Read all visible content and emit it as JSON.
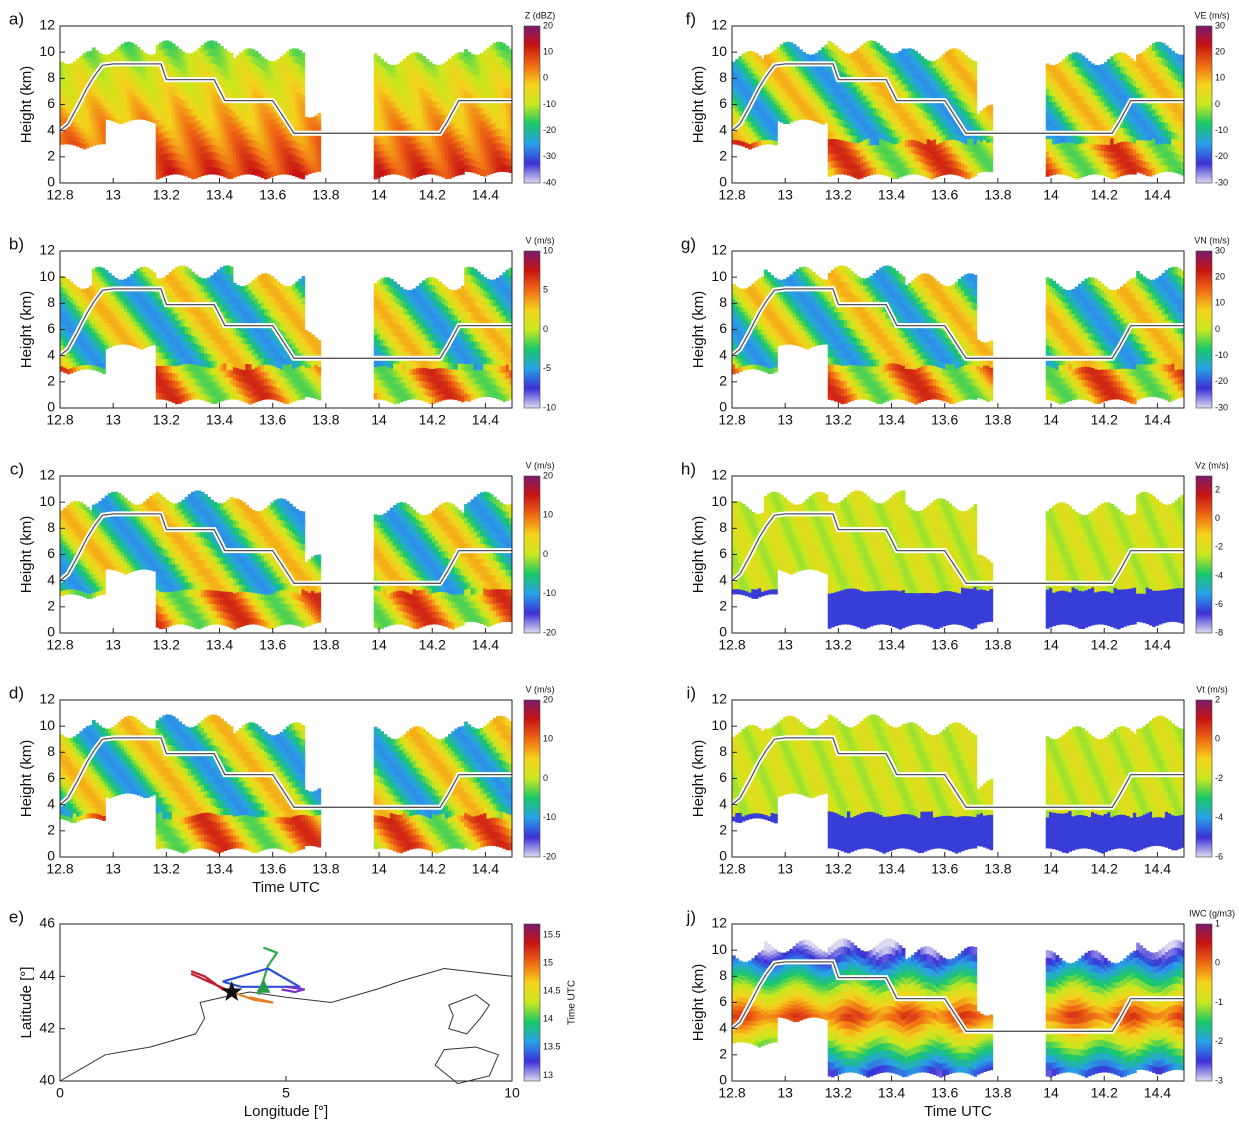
{
  "figure": {
    "time_axis_label": "Time UTC",
    "height_axis_label": "Height (km)"
  },
  "chart_data": [
    {
      "panel_label": "a)",
      "type": "heatmap",
      "ylabel": "Height (km)",
      "xlabel": "",
      "xlim": [
        12.8,
        14.5
      ],
      "ylim": [
        0,
        12
      ],
      "x_ticks": [
        "12.8",
        "13",
        "13.2",
        "13.4",
        "13.6",
        "13.8",
        "14",
        "14.2",
        "14.4"
      ],
      "y_ticks": [
        "0",
        "2",
        "4",
        "6",
        "8",
        "10",
        "12"
      ],
      "colorbar": {
        "label": "Z (dBZ)",
        "ticks": [
          "20",
          "10",
          "0",
          "-10",
          "-20",
          "-30",
          "-40"
        ],
        "range": [
          -40,
          20
        ]
      }
    },
    {
      "panel_label": "b)",
      "type": "heatmap",
      "ylabel": "Height (km)",
      "xlabel": "",
      "xlim": [
        12.8,
        14.5
      ],
      "ylim": [
        0,
        12
      ],
      "x_ticks": [
        "12.8",
        "13",
        "13.2",
        "13.4",
        "13.6",
        "13.8",
        "14",
        "14.2",
        "14.4"
      ],
      "y_ticks": [
        "0",
        "2",
        "4",
        "6",
        "8",
        "10",
        "12"
      ],
      "colorbar": {
        "label": "V (m/s)",
        "ticks": [
          "10",
          "5",
          "0",
          "-5",
          "-10"
        ],
        "range": [
          -10,
          10
        ]
      }
    },
    {
      "panel_label": "c)",
      "type": "heatmap",
      "ylabel": "Height (km)",
      "xlabel": "",
      "xlim": [
        12.8,
        14.5
      ],
      "ylim": [
        0,
        12
      ],
      "x_ticks": [
        "12.8",
        "13",
        "13.2",
        "13.4",
        "13.6",
        "13.8",
        "14",
        "14.2",
        "14.4"
      ],
      "y_ticks": [
        "0",
        "2",
        "4",
        "6",
        "8",
        "10",
        "12"
      ],
      "colorbar": {
        "label": "V (m/s)",
        "ticks": [
          "20",
          "10",
          "0",
          "-10",
          "-20"
        ],
        "range": [
          -20,
          20
        ]
      }
    },
    {
      "panel_label": "d)",
      "type": "heatmap",
      "ylabel": "Height (km)",
      "xlabel": "Time UTC",
      "xlim": [
        12.8,
        14.5
      ],
      "ylim": [
        0,
        12
      ],
      "x_ticks": [
        "12.8",
        "13",
        "13.2",
        "13.4",
        "13.6",
        "13.8",
        "14",
        "14.2",
        "14.4"
      ],
      "y_ticks": [
        "0",
        "2",
        "4",
        "6",
        "8",
        "10",
        "12"
      ],
      "colorbar": {
        "label": "V (m/s)",
        "ticks": [
          "20",
          "10",
          "0",
          "-10",
          "-20"
        ],
        "range": [
          -20,
          20
        ]
      }
    },
    {
      "panel_label": "e)",
      "type": "line",
      "ylabel": "Latitude [°]",
      "xlabel": "Longitude [°]",
      "xlim": [
        0,
        10
      ],
      "ylim": [
        40,
        46
      ],
      "x_ticks": [
        "0",
        "5",
        "10"
      ],
      "y_ticks": [
        "40",
        "42",
        "44",
        "46"
      ],
      "colorbar": {
        "label": "Time UTC",
        "ticks": [
          "15.5",
          "15",
          "14.5",
          "14",
          "13.5",
          "13"
        ],
        "range": [
          12.9,
          15.7
        ]
      },
      "coastline": [
        [
          0,
          40
        ],
        [
          0.5,
          40.5
        ],
        [
          1,
          41
        ],
        [
          2,
          41.3
        ],
        [
          3,
          41.8
        ],
        [
          3.2,
          42.4
        ],
        [
          3.1,
          43
        ],
        [
          3.6,
          43.2
        ],
        [
          4.2,
          43.4
        ],
        [
          5,
          43.2
        ],
        [
          6,
          43
        ],
        [
          7,
          43.5
        ],
        [
          7.5,
          43.8
        ],
        [
          8.5,
          44.3
        ],
        [
          9.5,
          44.1
        ],
        [
          10,
          44
        ]
      ],
      "coastline_islands": [
        [
          [
            8.6,
            42.9
          ],
          [
            9.2,
            43.3
          ],
          [
            9.5,
            42.9
          ],
          [
            9.3,
            42.4
          ],
          [
            9.0,
            41.8
          ],
          [
            8.6,
            42.0
          ],
          [
            8.7,
            42.5
          ]
        ],
        [
          [
            8.3,
            40.6
          ],
          [
            8.5,
            41.2
          ],
          [
            9.2,
            41.3
          ],
          [
            9.7,
            41.0
          ],
          [
            9.5,
            40.2
          ],
          [
            8.8,
            39.9
          ]
        ]
      ],
      "track_segments": [
        {
          "color": "#c01f2f",
          "points": [
            [
              2.9,
              44.2
            ],
            [
              3.2,
              44.0
            ],
            [
              3.6,
              43.5
            ],
            [
              3.8,
              43.4
            ],
            [
              2.9,
              44.1
            ]
          ]
        },
        {
          "color": "#e67e22",
          "points": [
            [
              3.8,
              43.4
            ],
            [
              4.3,
              43.1
            ],
            [
              4.7,
              43.0
            ],
            [
              4.2,
              43.2
            ]
          ]
        },
        {
          "color": "#2ca94a",
          "points": [
            [
              4.4,
              43.3
            ],
            [
              4.6,
              44.4
            ],
            [
              4.8,
              44.9
            ],
            [
              4.5,
              45.1
            ]
          ]
        },
        {
          "color": "#2f4fd8",
          "points": [
            [
              3.6,
              43.8
            ],
            [
              4.6,
              44.3
            ],
            [
              5.3,
              43.6
            ],
            [
              4.0,
              43.6
            ],
            [
              3.6,
              43.8
            ]
          ]
        },
        {
          "color": "#7a33c9",
          "points": [
            [
              4.9,
              43.5
            ],
            [
              5.2,
              43.4
            ],
            [
              5.4,
              43.5
            ],
            [
              5.0,
              43.6
            ]
          ]
        }
      ],
      "markers": [
        {
          "symbol": "star",
          "lon": 3.8,
          "lat": 43.4,
          "color": "#111111"
        },
        {
          "symbol": "triangle",
          "lon": 4.5,
          "lat": 43.6,
          "color": "#2a9d4a"
        }
      ]
    },
    {
      "panel_label": "f)",
      "type": "heatmap",
      "ylabel": "Height (km)",
      "xlabel": "",
      "xlim": [
        12.8,
        14.5
      ],
      "ylim": [
        0,
        12
      ],
      "x_ticks": [
        "12.8",
        "13",
        "13.2",
        "13.4",
        "13.6",
        "13.8",
        "14",
        "14.2",
        "14.4"
      ],
      "y_ticks": [
        "0",
        "2",
        "4",
        "6",
        "8",
        "10",
        "12"
      ],
      "colorbar": {
        "label": "VE (m/s)",
        "ticks": [
          "30",
          "20",
          "10",
          "0",
          "-10",
          "-20",
          "-30"
        ],
        "range": [
          -30,
          30
        ]
      }
    },
    {
      "panel_label": "g)",
      "type": "heatmap",
      "ylabel": "Height (km)",
      "xlabel": "",
      "xlim": [
        12.8,
        14.5
      ],
      "ylim": [
        0,
        12
      ],
      "x_ticks": [
        "12.8",
        "13",
        "13.2",
        "13.4",
        "13.6",
        "13.8",
        "14",
        "14.2",
        "14.4"
      ],
      "y_ticks": [
        "0",
        "2",
        "4",
        "6",
        "8",
        "10",
        "12"
      ],
      "colorbar": {
        "label": "VN (m/s)",
        "ticks": [
          "30",
          "20",
          "10",
          "0",
          "-10",
          "-20",
          "-30"
        ],
        "range": [
          -30,
          30
        ]
      }
    },
    {
      "panel_label": "h)",
      "type": "heatmap",
      "ylabel": "Height (km)",
      "xlabel": "",
      "xlim": [
        12.8,
        14.5
      ],
      "ylim": [
        0,
        12
      ],
      "x_ticks": [
        "12.8",
        "13",
        "13.2",
        "13.4",
        "13.6",
        "13.8",
        "14",
        "14.2",
        "14.4"
      ],
      "y_ticks": [
        "0",
        "2",
        "4",
        "6",
        "8",
        "10",
        "12"
      ],
      "colorbar": {
        "label": "Vz (m/s)",
        "ticks": [
          "2",
          "0",
          "-2",
          "-4",
          "-6",
          "-8"
        ],
        "range": [
          -8,
          3
        ]
      }
    },
    {
      "panel_label": "i)",
      "type": "heatmap",
      "ylabel": "Height (km)",
      "xlabel": "",
      "xlim": [
        12.8,
        14.5
      ],
      "ylim": [
        0,
        12
      ],
      "x_ticks": [
        "12.8",
        "13",
        "13.2",
        "13.4",
        "13.6",
        "13.8",
        "14",
        "14.2",
        "14.4"
      ],
      "y_ticks": [
        "0",
        "2",
        "4",
        "6",
        "8",
        "10",
        "12"
      ],
      "colorbar": {
        "label": "Vt (m/s)",
        "ticks": [
          "2",
          "0",
          "-2",
          "-4",
          "-6"
        ],
        "range": [
          -6,
          2
        ]
      }
    },
    {
      "panel_label": "j)",
      "type": "heatmap",
      "ylabel": "Height (km)",
      "xlabel": "Time UTC",
      "xlim": [
        12.8,
        14.5
      ],
      "ylim": [
        0,
        12
      ],
      "x_ticks": [
        "12.8",
        "13",
        "13.2",
        "13.4",
        "13.6",
        "13.8",
        "14",
        "14.2",
        "14.4"
      ],
      "y_ticks": [
        "0",
        "2",
        "4",
        "6",
        "8",
        "10",
        "12"
      ],
      "colorbar": {
        "label": "IWC (g/m3)",
        "ticks": [
          "1",
          "0",
          "-1",
          "-2",
          "-3"
        ],
        "range": [
          -3,
          1
        ]
      }
    }
  ],
  "flight_altitude": {
    "times": [
      12.8,
      12.83,
      12.87,
      12.9,
      12.93,
      12.96,
      13.0,
      13.18,
      13.2,
      13.38,
      13.42,
      13.6,
      13.68,
      14.23,
      14.26,
      14.3,
      14.5
    ],
    "heights": [
      4.0,
      4.5,
      6.0,
      7.2,
      8.2,
      9.0,
      9.1,
      9.1,
      7.9,
      7.9,
      6.3,
      6.3,
      3.8,
      3.8,
      4.8,
      6.3,
      6.3
    ]
  },
  "echo_regions": [
    {
      "t0": 12.8,
      "t1": 12.97,
      "h0": 2.6,
      "h1": 9.6
    },
    {
      "t0": 12.92,
      "t1": 13.16,
      "h0": 4.5,
      "h1": 10.3
    },
    {
      "t0": 13.16,
      "t1": 13.45,
      "h0": 0.3,
      "h1": 10.4
    },
    {
      "t0": 13.45,
      "t1": 13.72,
      "h0": 0.3,
      "h1": 9.8
    },
    {
      "t0": 13.72,
      "t1": 13.78,
      "h0": 0.5,
      "h1": 5.5
    },
    {
      "t0": 13.98,
      "t1": 14.32,
      "h0": 0.3,
      "h1": 9.5
    },
    {
      "t0": 14.32,
      "t1": 14.5,
      "h0": 0.5,
      "h1": 10.3
    }
  ],
  "colorscale": [
    "#dcd9f0",
    "#3a30d6",
    "#2aa0e8",
    "#18c86a",
    "#c8e81e",
    "#f5d21c",
    "#f06b14",
    "#c81414",
    "#7a1a6a"
  ]
}
